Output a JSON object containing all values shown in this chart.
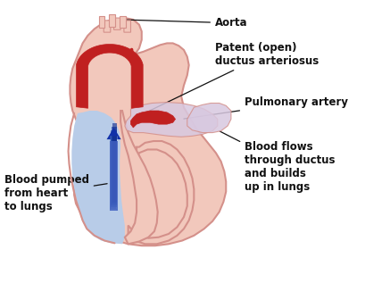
{
  "bg_color": "#ffffff",
  "heart_fill": "#f2c8bc",
  "heart_edge": "#d4908a",
  "heart_lw": 1.5,
  "blue_fill": "#b8cce8",
  "blue_edge": "#8aaad0",
  "red_dark": "#c02020",
  "red_mid": "#d44040",
  "pulm_fill": "#d8c8e0",
  "pulm_edge": "#b8a0c8",
  "ann_color": "#111111",
  "ann_fs": 8.0,
  "bold_fs": 8.5,
  "labels": {
    "aorta": "Aorta",
    "patent": "Patent (open)\nductus arteriosus",
    "pulmonary": "Pulmonary artery",
    "blood_flows": "Blood flows\nthrough ductus\nand builds\nup in lungs",
    "blood_pumped": "Blood pumped\nfrom heart\nto lungs"
  }
}
